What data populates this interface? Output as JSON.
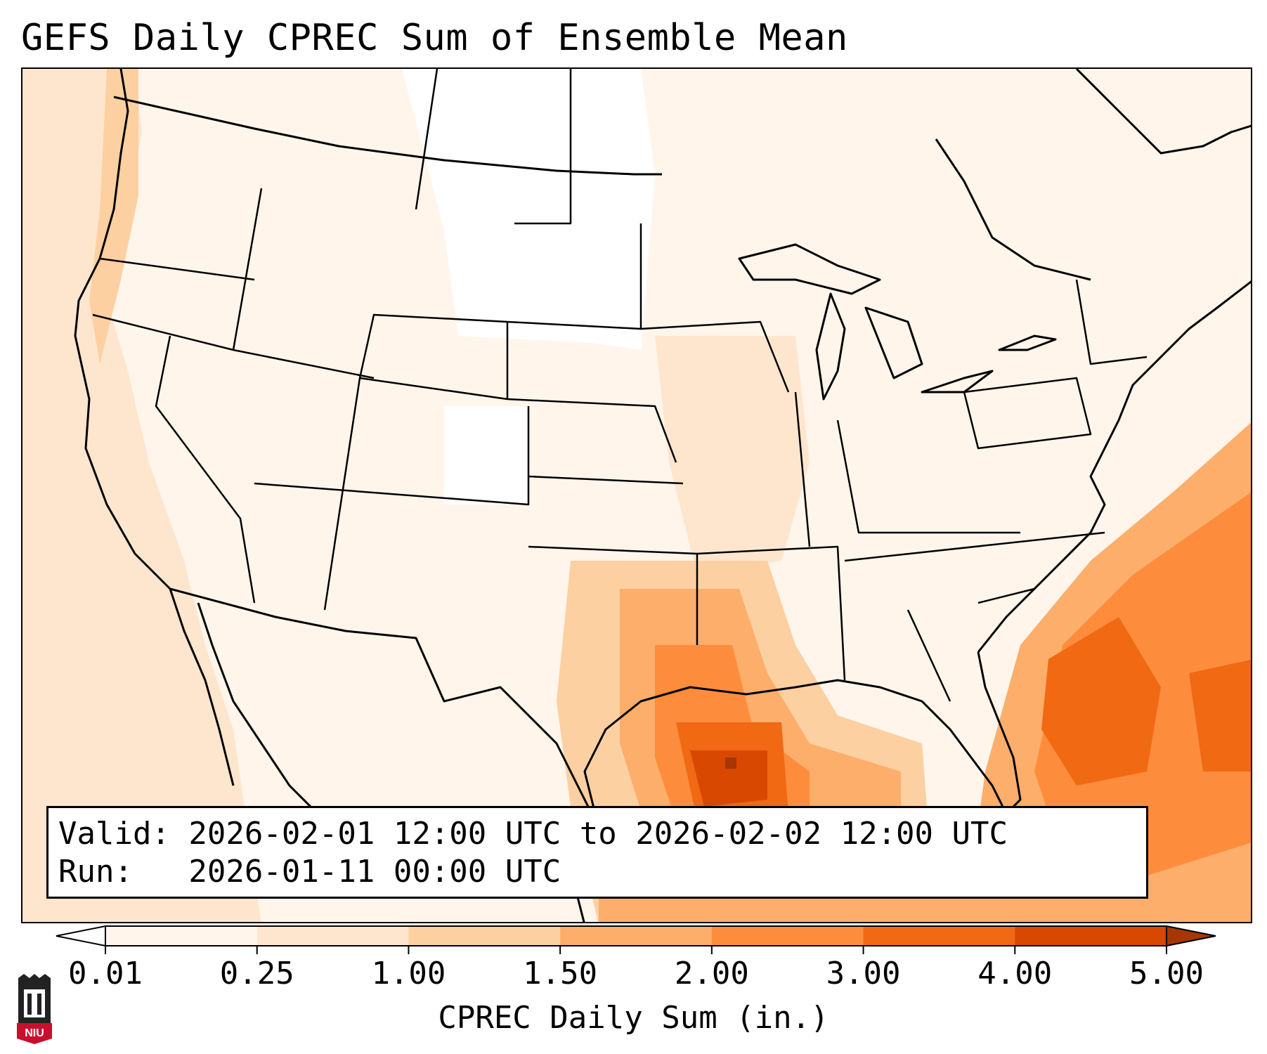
{
  "title": "GEFS Daily CPREC Sum of Ensemble Mean",
  "info": {
    "valid_line": "Valid: 2026-02-01 12:00 UTC to 2026-02-02 12:00 UTC",
    "run_line": "Run:   2026-01-11 00:00 UTC"
  },
  "colorbar": {
    "label": "CPREC Daily Sum (in.)",
    "ticks": [
      "0.01",
      "0.25",
      "1.00",
      "1.50",
      "2.00",
      "3.00",
      "4.00",
      "5.00"
    ],
    "colors": [
      "#fff5eb",
      "#fee6ce",
      "#fdd0a2",
      "#fdae6b",
      "#fd8d3c",
      "#f16913",
      "#d94801",
      "#a63603"
    ],
    "under_color": "#ffffff",
    "over_color": "#a63603"
  },
  "logo": {
    "name": "niu-logo",
    "text": "NIU",
    "color": "#c8102e"
  }
}
